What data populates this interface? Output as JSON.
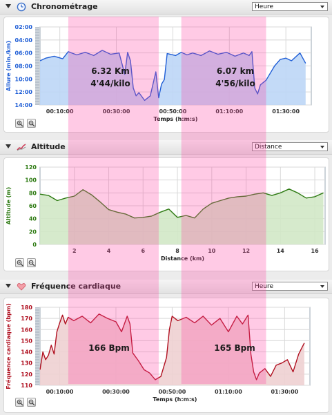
{
  "panels": [
    {
      "title": "Chronométrage",
      "select_value": "Heure",
      "icon": "clock-icon",
      "zoom_in": "zoom-in-icon",
      "zoom_out": "zoom-out-icon"
    },
    {
      "title": "Altitude",
      "select_value": "Distance",
      "icon": "altitude-icon",
      "zoom_in": "zoom-in-icon",
      "zoom_out": "zoom-out-icon"
    },
    {
      "title": "Fréquence cardiaque",
      "select_value": "Heure",
      "icon": "heart-icon",
      "zoom_in": "zoom-in-icon",
      "zoom_out": "zoom-out-icon"
    }
  ],
  "chart_data": [
    {
      "type": "area",
      "title": "Chronométrage",
      "xlabel": "Temps (h:m:s)",
      "ylabel": "Allure (min./km)",
      "y_inverted": true,
      "yticks": [
        "02:00",
        "04:00",
        "06:00",
        "08:00",
        "10:00",
        "12:00",
        "14:00"
      ],
      "xticks": [
        "00:10:00",
        "00:30:00",
        "00:50:00",
        "01:10:00",
        "01:30:00"
      ],
      "xlim_minutes": [
        3,
        99
      ],
      "ylim_minutes": [
        2,
        14
      ],
      "x_minutes": [
        3,
        5,
        8,
        11,
        13,
        16,
        19,
        22,
        25,
        28,
        31,
        33,
        34,
        35,
        36,
        37,
        38,
        40,
        42,
        44,
        45,
        46,
        47,
        48,
        51,
        53,
        55,
        57,
        60,
        63,
        66,
        69,
        72,
        75,
        77,
        78,
        79,
        80,
        81,
        83,
        86,
        88,
        90,
        92,
        95,
        97
      ],
      "y_minutes": [
        7.2,
        6.8,
        6.5,
        6.9,
        5.8,
        6.3,
        5.9,
        6.4,
        5.6,
        6.2,
        6.0,
        9.3,
        5.9,
        7.2,
        11.4,
        12.6,
        12.1,
        13.3,
        12.6,
        8.9,
        12.9,
        10.8,
        10.1,
        6.1,
        6.4,
        5.9,
        6.3,
        6.0,
        6.4,
        5.7,
        6.2,
        5.9,
        6.5,
        6.0,
        6.4,
        5.8,
        11.4,
        12.3,
        10.9,
        10.2,
        8.0,
        7.0,
        6.8,
        7.2,
        6.0,
        7.6
      ],
      "grid": true,
      "color": "#1f5ed6",
      "fill": "#bcd6f6"
    },
    {
      "type": "area",
      "title": "Altitude",
      "xlabel": "Distance (km)",
      "ylabel": "Altitude (m)",
      "yticks": [
        "0",
        "20",
        "40",
        "60",
        "80",
        "100",
        "120"
      ],
      "xticks": [
        "2",
        "4",
        "6",
        "8",
        "10",
        "12",
        "14",
        "16"
      ],
      "xlim": [
        0,
        16.6
      ],
      "ylim": [
        0,
        120
      ],
      "x": [
        0,
        0.5,
        1,
        1.5,
        2,
        2.5,
        3,
        3.5,
        4,
        4.5,
        5,
        5.5,
        6,
        6.5,
        7,
        7.5,
        8,
        8.5,
        9,
        9.5,
        10,
        10.5,
        11,
        11.5,
        12,
        12.5,
        13,
        13.5,
        14,
        14.5,
        15,
        15.5,
        16,
        16.5
      ],
      "y": [
        78,
        76,
        68,
        72,
        75,
        85,
        77,
        66,
        54,
        50,
        47,
        41,
        42,
        44,
        50,
        55,
        42,
        45,
        41,
        55,
        64,
        68,
        72,
        74,
        75,
        78,
        80,
        76,
        80,
        86,
        80,
        72,
        74,
        80
      ],
      "grid": true,
      "color": "#2d7a12",
      "fill": "#d2e8c6"
    },
    {
      "type": "area",
      "title": "Fréquence cardiaque",
      "xlabel": "Temps (h:m:s)",
      "ylabel": "Fréquence cardiaque (bpm)",
      "yticks": [
        "110",
        "120",
        "130",
        "140",
        "150",
        "160",
        "170",
        "180"
      ],
      "xticks": [
        "00:10:00",
        "00:30:00",
        "00:50:00",
        "01:10:00",
        "01:30:00"
      ],
      "xlim_minutes": [
        3,
        99
      ],
      "ylim": [
        110,
        180
      ],
      "x_minutes": [
        3,
        4,
        5,
        6,
        7,
        8,
        9,
        10,
        11,
        12,
        13,
        15,
        18,
        21,
        24,
        27,
        30,
        32,
        34,
        35,
        36,
        38,
        40,
        42,
        44,
        46,
        48,
        49,
        50,
        52,
        55,
        58,
        61,
        64,
        67,
        70,
        73,
        75,
        77,
        78,
        79,
        80,
        81,
        83,
        85,
        87,
        89,
        91,
        93,
        95,
        97
      ],
      "y": [
        124,
        140,
        133,
        137,
        146,
        138,
        158,
        166,
        173,
        165,
        171,
        168,
        172,
        166,
        174,
        170,
        167,
        158,
        172,
        165,
        139,
        132,
        124,
        121,
        115,
        118,
        135,
        160,
        172,
        168,
        171,
        166,
        172,
        164,
        170,
        158,
        172,
        165,
        173,
        138,
        122,
        115,
        121,
        125,
        118,
        128,
        130,
        133,
        122,
        138,
        148
      ],
      "grid": true,
      "color": "#b01020",
      "fill": "#eed0d2"
    }
  ],
  "highlights": {
    "segments_minutes": [
      [
        13,
        45
      ],
      [
        53,
        83
      ]
    ],
    "color": "#ff3fa0",
    "labels": {
      "seg1_distance": "6.32 Km",
      "seg1_pace": "4'44/kilo",
      "seg1_bpm": "166 Bpm",
      "seg2_distance": "6.07 km",
      "seg2_pace": "4'56/kilo",
      "seg2_bpm": "165 Bpm"
    }
  }
}
